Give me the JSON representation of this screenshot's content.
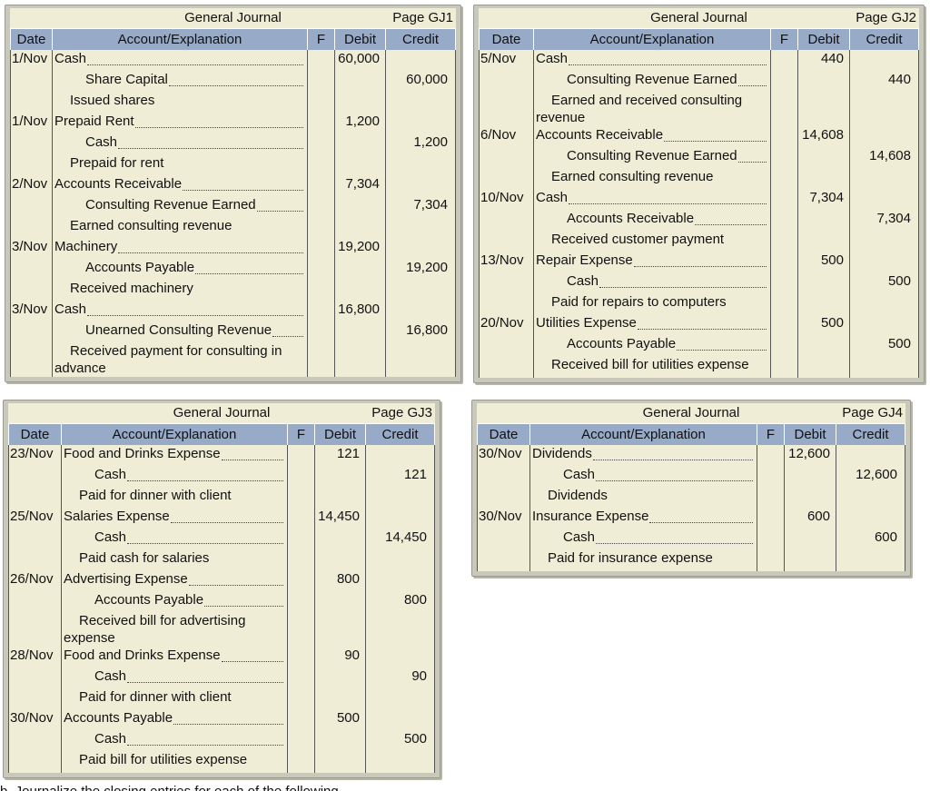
{
  "headers": {
    "date": "Date",
    "account": "Account/Explanation",
    "f": "F",
    "debit": "Debit",
    "credit": "Credit"
  },
  "journals": [
    {
      "title": "General Journal",
      "page": "Page GJ1",
      "rows": [
        {
          "date": "1/Nov",
          "account": "Cash",
          "type": "debit",
          "debit": "60,000",
          "credit": ""
        },
        {
          "date": "",
          "account": "Share Capital",
          "type": "credit",
          "debit": "",
          "credit": "60,000"
        },
        {
          "date": "",
          "account": "Issued shares",
          "type": "expl",
          "debit": "",
          "credit": ""
        },
        {
          "date": "1/Nov",
          "account": "Prepaid Rent",
          "type": "debit",
          "debit": "1,200",
          "credit": ""
        },
        {
          "date": "",
          "account": "Cash",
          "type": "credit",
          "debit": "",
          "credit": "1,200"
        },
        {
          "date": "",
          "account": "Prepaid for rent",
          "type": "expl",
          "debit": "",
          "credit": ""
        },
        {
          "date": "2/Nov",
          "account": "Accounts Receivable",
          "type": "debit",
          "debit": "7,304",
          "credit": ""
        },
        {
          "date": "",
          "account": "Consulting Revenue Earned",
          "type": "credit",
          "debit": "",
          "credit": "7,304"
        },
        {
          "date": "",
          "account": "Earned consulting revenue",
          "type": "expl",
          "debit": "",
          "credit": ""
        },
        {
          "date": "3/Nov",
          "account": "Machinery",
          "type": "debit",
          "debit": "19,200",
          "credit": ""
        },
        {
          "date": "",
          "account": "Accounts Payable",
          "type": "credit",
          "debit": "",
          "credit": "19,200"
        },
        {
          "date": "",
          "account": "Received machinery",
          "type": "expl",
          "debit": "",
          "credit": ""
        },
        {
          "date": "3/Nov",
          "account": "Cash",
          "type": "debit",
          "debit": "16,800",
          "credit": ""
        },
        {
          "date": "",
          "account": "Unearned Consulting Revenue",
          "type": "credit",
          "debit": "",
          "credit": "16,800"
        },
        {
          "date": "",
          "account": "Received payment for consulting in advance",
          "type": "explwrap",
          "debit": "",
          "credit": ""
        }
      ]
    },
    {
      "title": "General Journal",
      "page": "Page GJ2",
      "rows": [
        {
          "date": "5/Nov",
          "account": "Cash",
          "type": "debit",
          "debit": "440",
          "credit": ""
        },
        {
          "date": "",
          "account": "Consulting Revenue Earned",
          "type": "credit",
          "debit": "",
          "credit": "440"
        },
        {
          "date": "",
          "account": "Earned and received consulting revenue",
          "type": "explwrap",
          "debit": "",
          "credit": ""
        },
        {
          "date": "6/Nov",
          "account": "Accounts Receivable",
          "type": "debit",
          "debit": "14,608",
          "credit": ""
        },
        {
          "date": "",
          "account": "Consulting Revenue Earned",
          "type": "credit",
          "debit": "",
          "credit": "14,608"
        },
        {
          "date": "",
          "account": "Earned consulting revenue",
          "type": "expl",
          "debit": "",
          "credit": ""
        },
        {
          "date": "10/Nov",
          "account": "Cash",
          "type": "debit",
          "debit": "7,304",
          "credit": ""
        },
        {
          "date": "",
          "account": "Accounts Receivable",
          "type": "credit",
          "debit": "",
          "credit": "7,304"
        },
        {
          "date": "",
          "account": "Received customer payment",
          "type": "expl",
          "debit": "",
          "credit": ""
        },
        {
          "date": "13/Nov",
          "account": "Repair Expense",
          "type": "debit",
          "debit": "500",
          "credit": ""
        },
        {
          "date": "",
          "account": "Cash",
          "type": "credit",
          "debit": "",
          "credit": "500"
        },
        {
          "date": "",
          "account": "Paid for repairs to computers",
          "type": "expl",
          "debit": "",
          "credit": ""
        },
        {
          "date": "20/Nov",
          "account": "Utilities Expense",
          "type": "debit",
          "debit": "500",
          "credit": ""
        },
        {
          "date": "",
          "account": "Accounts Payable",
          "type": "credit",
          "debit": "",
          "credit": "500"
        },
        {
          "date": "",
          "account": "Received bill for utilities expense",
          "type": "expl",
          "debit": "",
          "credit": ""
        }
      ]
    },
    {
      "title": "General Journal",
      "page": "Page GJ3",
      "rows": [
        {
          "date": "23/Nov",
          "account": "Food and Drinks Expense",
          "type": "debit",
          "debit": "121",
          "credit": ""
        },
        {
          "date": "",
          "account": "Cash",
          "type": "credit",
          "debit": "",
          "credit": "121"
        },
        {
          "date": "",
          "account": "Paid for dinner with client",
          "type": "expl",
          "debit": "",
          "credit": ""
        },
        {
          "date": "25/Nov",
          "account": "Salaries Expense",
          "type": "debit",
          "debit": "14,450",
          "credit": ""
        },
        {
          "date": "",
          "account": "Cash",
          "type": "credit",
          "debit": "",
          "credit": "14,450"
        },
        {
          "date": "",
          "account": "Paid cash for salaries",
          "type": "expl",
          "debit": "",
          "credit": ""
        },
        {
          "date": "26/Nov",
          "account": "Advertising Expense",
          "type": "debit",
          "debit": "800",
          "credit": ""
        },
        {
          "date": "",
          "account": "Accounts Payable",
          "type": "credit",
          "debit": "",
          "credit": "800"
        },
        {
          "date": "",
          "account": "Received bill for advertising expense",
          "type": "explwrap",
          "debit": "",
          "credit": ""
        },
        {
          "date": "28/Nov",
          "account": "Food and Drinks Expense",
          "type": "debit",
          "debit": "90",
          "credit": ""
        },
        {
          "date": "",
          "account": "Cash",
          "type": "credit",
          "debit": "",
          "credit": "90"
        },
        {
          "date": "",
          "account": "Paid for dinner with client",
          "type": "expl",
          "debit": "",
          "credit": ""
        },
        {
          "date": "30/Nov",
          "account": "Accounts Payable",
          "type": "debit",
          "debit": "500",
          "credit": ""
        },
        {
          "date": "",
          "account": "Cash",
          "type": "credit",
          "debit": "",
          "credit": "500"
        },
        {
          "date": "",
          "account": "Paid bill for utilities expense",
          "type": "expl",
          "debit": "",
          "credit": ""
        }
      ]
    },
    {
      "title": "General Journal",
      "page": "Page GJ4",
      "rows": [
        {
          "date": "30/Nov",
          "account": "Dividends",
          "type": "debit",
          "debit": "12,600",
          "credit": ""
        },
        {
          "date": "",
          "account": "Cash",
          "type": "credit",
          "debit": "",
          "credit": "12,600"
        },
        {
          "date": "",
          "account": "Dividends",
          "type": "expl",
          "debit": "",
          "credit": ""
        },
        {
          "date": "30/Nov",
          "account": "Insurance Expense",
          "type": "debit",
          "debit": "600",
          "credit": ""
        },
        {
          "date": "",
          "account": "Cash",
          "type": "credit",
          "debit": "",
          "credit": "600"
        },
        {
          "date": "",
          "account": "Paid for insurance expense",
          "type": "expl",
          "debit": "",
          "credit": ""
        }
      ]
    }
  ],
  "footer_text": "b. Journalize the closing entries for each of the following..."
}
